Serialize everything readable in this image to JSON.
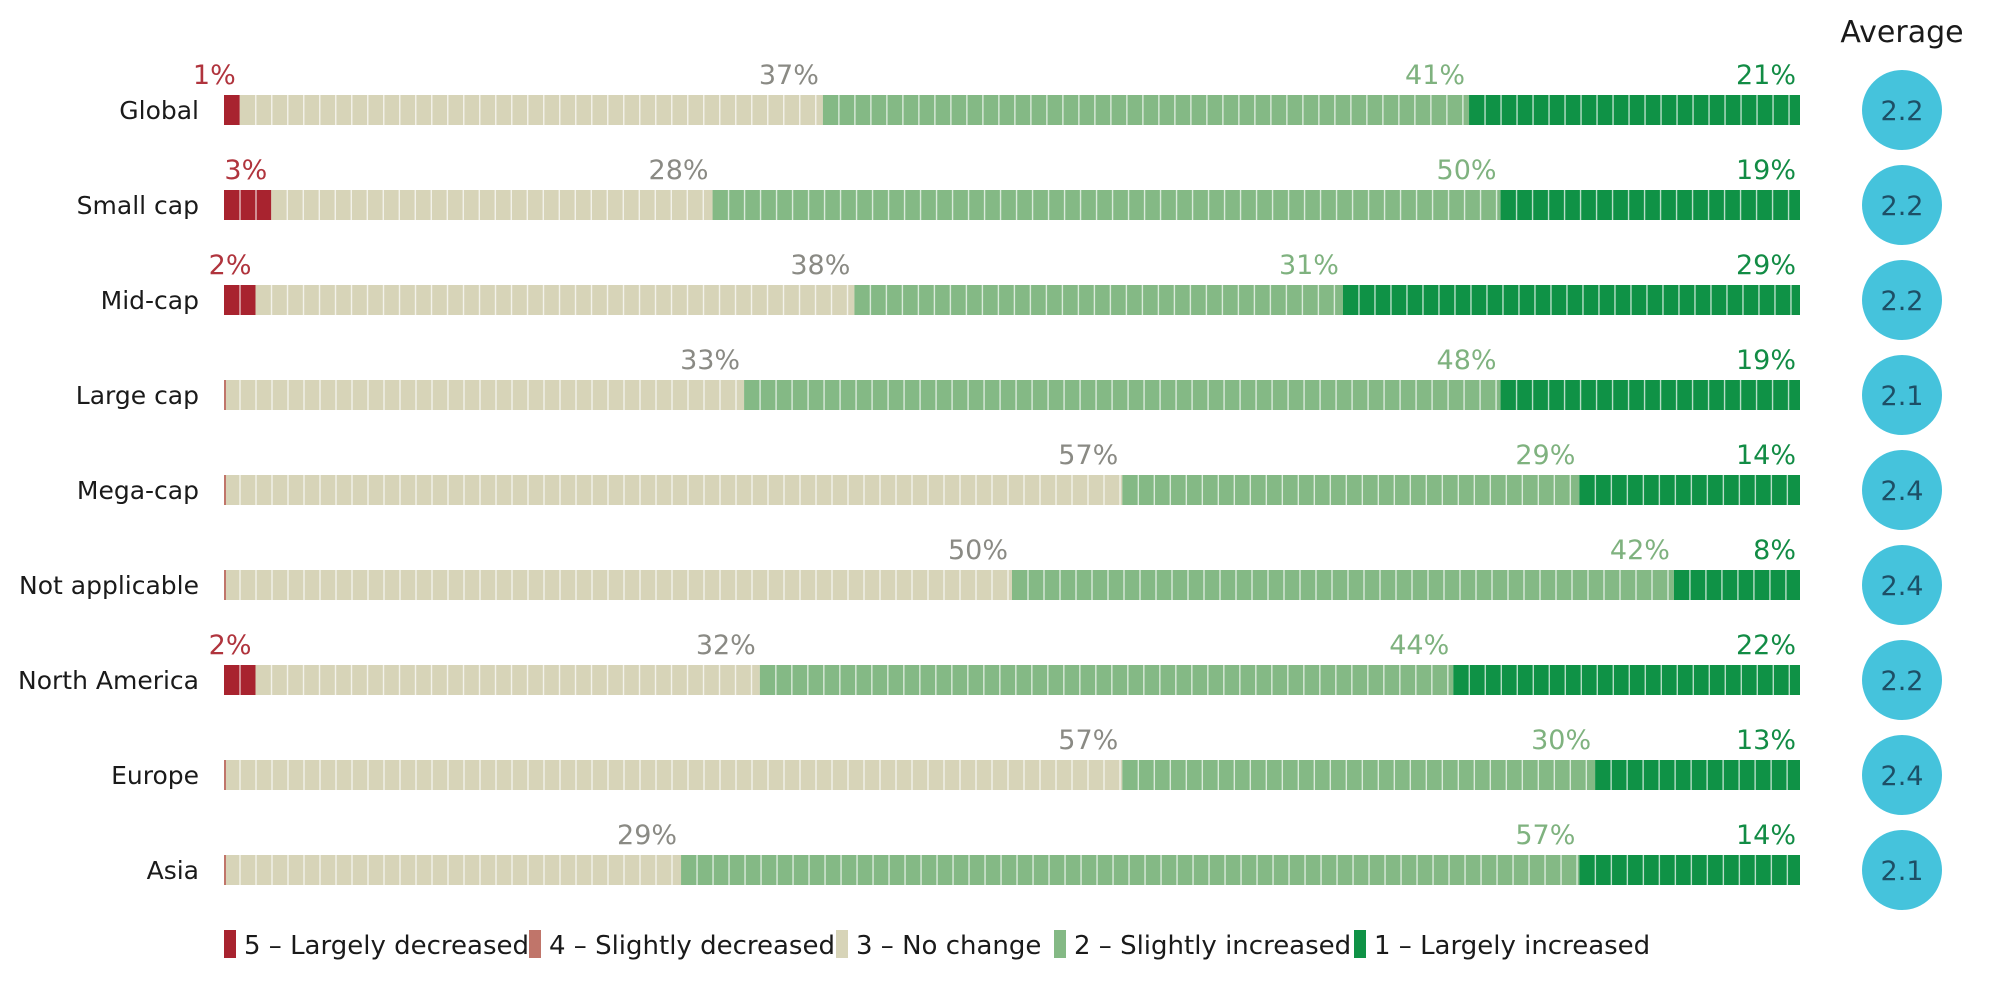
{
  "chart_data": {
    "type": "bar",
    "orientation": "horizontal",
    "stacked": "100%",
    "categories": [
      "Global",
      "Small cap",
      "Mid-cap",
      "Large cap",
      "Mega-cap",
      "Not applicable",
      "North America",
      "Europe",
      "Asia"
    ],
    "series": [
      {
        "name": "5 – Largely decreased",
        "color": "#a8232f",
        "values": [
          1,
          3,
          2,
          0,
          0,
          0,
          2,
          0,
          0
        ]
      },
      {
        "name": "4 – Slightly decreased",
        "color": "#c0756a",
        "values": [
          0,
          0,
          0,
          0,
          0,
          0,
          0,
          0,
          0
        ]
      },
      {
        "name": "3 – No change",
        "color": "#d7d4b8",
        "values": [
          37,
          28,
          38,
          33,
          57,
          50,
          32,
          57,
          29
        ]
      },
      {
        "name": "2 – Slightly increased",
        "color": "#84b985",
        "values": [
          41,
          50,
          31,
          48,
          29,
          42,
          44,
          30,
          57
        ]
      },
      {
        "name": "1 – Largely increased",
        "color": "#0f9246",
        "values": [
          21,
          19,
          29,
          19,
          14,
          8,
          22,
          13,
          14
        ]
      }
    ],
    "data_labels": [
      [
        "1%",
        null,
        "37%",
        "41%",
        "21%"
      ],
      [
        "3%",
        null,
        "28%",
        "50%",
        "19%"
      ],
      [
        "2%",
        null,
        "38%",
        "31%",
        "29%"
      ],
      [
        null,
        null,
        "33%",
        "48%",
        "19%"
      ],
      [
        null,
        null,
        "57%",
        "29%",
        "14%"
      ],
      [
        null,
        null,
        "50%",
        "42%",
        "8%"
      ],
      [
        "2%",
        null,
        "32%",
        "44%",
        "22%"
      ],
      [
        null,
        null,
        "57%",
        "30%",
        "13%"
      ],
      [
        null,
        null,
        "29%",
        "57%",
        "14%"
      ]
    ],
    "label_colors": [
      "#b0343d",
      "#c0756a",
      "#8a8a84",
      "#7fb27f",
      "#128c45"
    ],
    "average_title": "Average",
    "averages": [
      "2.2",
      "2.2",
      "2.2",
      "2.1",
      "2.4",
      "2.4",
      "2.2",
      "2.4",
      "2.1"
    ],
    "average_color": "#45c3dc",
    "legend_position": "bottom-left",
    "xlim": [
      0,
      100
    ]
  }
}
